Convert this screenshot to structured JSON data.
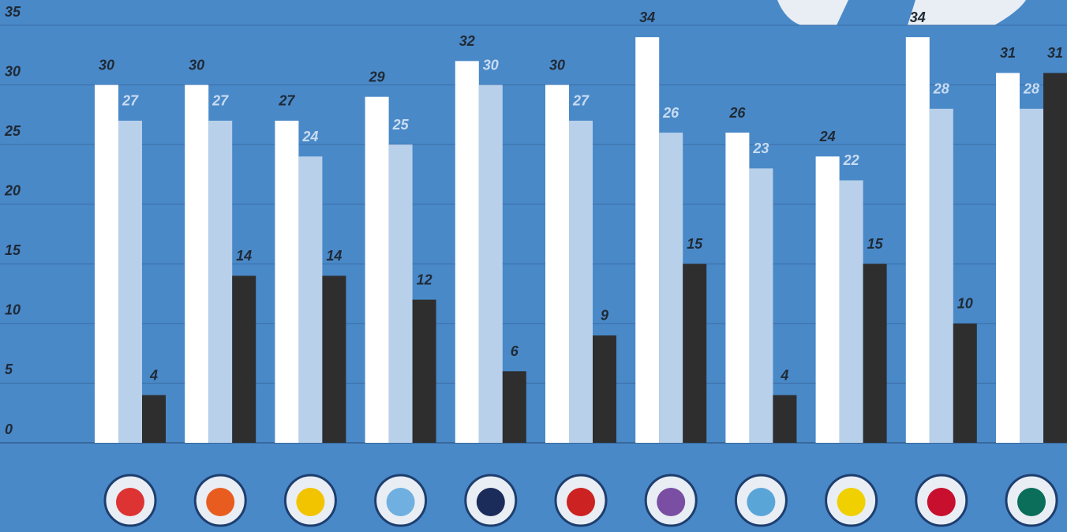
{
  "chart_data": {
    "type": "bar",
    "categories": [
      null,
      null,
      null,
      null,
      null,
      null,
      null,
      null,
      null,
      null,
      null
    ],
    "series": [
      {
        "color": "#ffffff",
        "values": [
          30,
          30,
          27,
          29,
          32,
          30,
          34,
          26,
          24,
          34,
          31
        ]
      },
      {
        "color": "#b8d0ea",
        "values": [
          27,
          27,
          24,
          25,
          30,
          27,
          26,
          23,
          22,
          28,
          28
        ]
      },
      {
        "color": "#2e2e2e",
        "values": [
          4,
          14,
          14,
          12,
          6,
          9,
          15,
          4,
          15,
          10,
          31
        ]
      }
    ],
    "ylim": [
      0,
      35
    ],
    "yticks": [
      0,
      5,
      10,
      15,
      20,
      25,
      30,
      35
    ],
    "grid": true
  }
}
